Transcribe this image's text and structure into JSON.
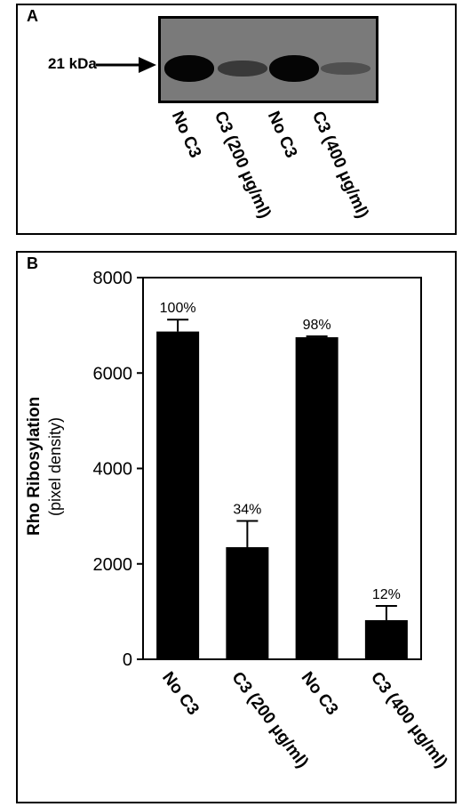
{
  "panel_a": {
    "letter": "A",
    "marker_label": "21 kDa",
    "lanes": [
      "No C3",
      "C3 (200 µg/ml)",
      "No C3",
      "C3 (400 µg/ml)"
    ],
    "band_intensity": [
      1.0,
      0.4,
      1.0,
      0.2
    ]
  },
  "panel_b": {
    "letter": "B",
    "ylabel_main": "Rho Ribosylation",
    "ylabel_sub": "(pixel density)"
  },
  "chart_data": {
    "type": "bar",
    "categories": [
      "No C3",
      "C3 (200 µg/ml)",
      "No C3",
      "C3 (400 µg/ml)"
    ],
    "values": [
      6870,
      2350,
      6750,
      820
    ],
    "errors": [
      250,
      550,
      20,
      300
    ],
    "data_labels": [
      "100%",
      "34%",
      "98%",
      "12%"
    ],
    "yticks": [
      0,
      2000,
      4000,
      6000,
      8000
    ],
    "ylim": [
      0,
      8000
    ],
    "xlabel": "",
    "ylabel": "Rho Ribosylation (pixel density)",
    "bar_color": "#000000"
  }
}
